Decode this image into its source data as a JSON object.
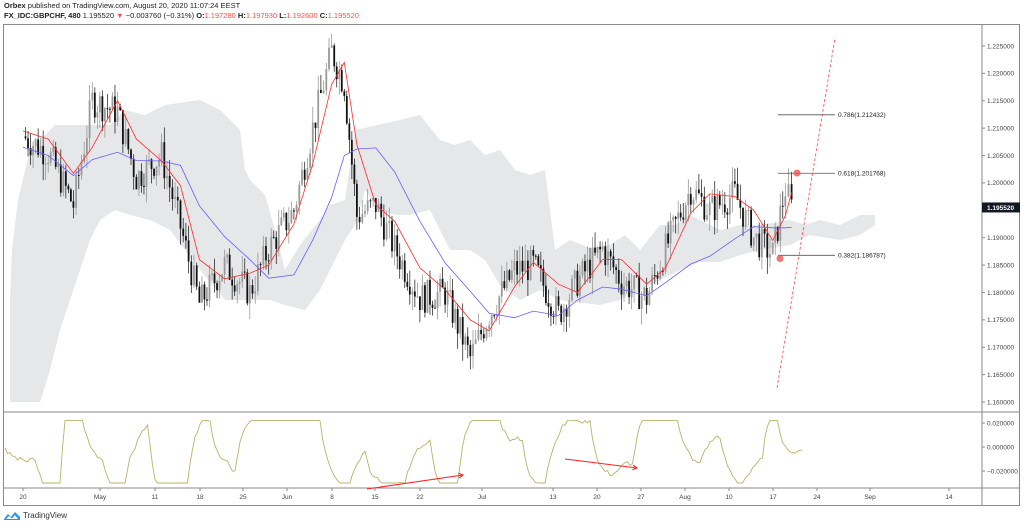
{
  "header": {
    "publisher": "Orbex",
    "published_text": "published on TradingView.com, August 20, 2020 11:07:24 EEST",
    "symbol": "FX_IDC:GBPCHF, 480",
    "last": "1.195520",
    "change_arrow": "▼",
    "change": "−0.003760 (−0.31%)",
    "o_label": "O:",
    "o": "1.197280",
    "h_label": "H:",
    "h": "1.197930",
    "l_label": "L:",
    "l": "1.192600",
    "c_label": "C:",
    "c": "1.195520"
  },
  "price_axis": {
    "ticks": [
      "1.225000",
      "1.220000",
      "1.215000",
      "1.210000",
      "1.205000",
      "1.200000",
      "1.190000",
      "1.185000",
      "1.180000",
      "1.175000",
      "1.170000",
      "1.165000",
      "1.160000"
    ],
    "current_label": "1.195520"
  },
  "osc_axis": {
    "ticks": [
      "0.020000",
      "0.000000",
      "−0.020000"
    ]
  },
  "time_axis": {
    "ticks": [
      "20",
      "May",
      "11",
      "18",
      "25",
      "Jun",
      "8",
      "15",
      "22",
      "Jul",
      "13",
      "20",
      "27",
      "Aug",
      "10",
      "17",
      "24",
      "Sep",
      "14"
    ]
  },
  "fib_levels": [
    {
      "label": "0.786(1.212432)"
    },
    {
      "label": "0.618(1.201768)"
    },
    {
      "label": "0.382(1.186787)"
    }
  ],
  "footer": {
    "brand": "TradingView"
  },
  "colors": {
    "tenkan": "#ff2b2b",
    "kijun": "#6b5cff",
    "cloud": "#e6e7e9",
    "oscillator": "#b8b36a",
    "arrow": "#ff2020",
    "candle": "#111111"
  },
  "chart_data": {
    "type": "candlestick",
    "title": "FX_IDC:GBPCHF, 480",
    "ylabel": "Price",
    "ylim": [
      1.1575,
      1.2285
    ],
    "x_ticks": [
      "20",
      "May",
      "11",
      "18",
      "25",
      "Jun",
      "8",
      "15",
      "22",
      "Jul",
      "13",
      "20",
      "27",
      "Aug",
      "10",
      "17",
      "24",
      "Sep",
      "14"
    ],
    "ohlc_last": {
      "open": 1.19728,
      "high": 1.19793,
      "low": 1.1926,
      "close": 1.19552
    },
    "approx_close_path": [
      {
        "x": "Apr 20",
        "y": 1.2085
      },
      {
        "x": "Apr 24",
        "y": 1.2055
      },
      {
        "x": "Apr 28",
        "y": 1.196
      },
      {
        "x": "May 1",
        "y": 1.215
      },
      {
        "x": "May 5",
        "y": 1.213
      },
      {
        "x": "May 8",
        "y": 1.201
      },
      {
        "x": "May 12",
        "y": 1.205
      },
      {
        "x": "May 15",
        "y": 1.192
      },
      {
        "x": "May 18",
        "y": 1.178
      },
      {
        "x": "May 22",
        "y": 1.185
      },
      {
        "x": "May 26",
        "y": 1.18
      },
      {
        "x": "May 29",
        "y": 1.188
      },
      {
        "x": "Jun 2",
        "y": 1.195
      },
      {
        "x": "Jun 5",
        "y": 1.21
      },
      {
        "x": "Jun 8",
        "y": 1.224
      },
      {
        "x": "Jun 10",
        "y": 1.218
      },
      {
        "x": "Jun 12",
        "y": 1.194
      },
      {
        "x": "Jun 15",
        "y": 1.196
      },
      {
        "x": "Jun 18",
        "y": 1.188
      },
      {
        "x": "Jun 22",
        "y": 1.179
      },
      {
        "x": "Jun 26",
        "y": 1.18
      },
      {
        "x": "Jun 30",
        "y": 1.168
      },
      {
        "x": "Jul 3",
        "y": 1.176
      },
      {
        "x": "Jul 7",
        "y": 1.184
      },
      {
        "x": "Jul 10",
        "y": 1.185
      },
      {
        "x": "Jul 14",
        "y": 1.176
      },
      {
        "x": "Jul 17",
        "y": 1.182
      },
      {
        "x": "Jul 21",
        "y": 1.188
      },
      {
        "x": "Jul 24",
        "y": 1.182
      },
      {
        "x": "Jul 28",
        "y": 1.179
      },
      {
        "x": "Jul 31",
        "y": 1.188
      },
      {
        "x": "Aug 4",
        "y": 1.199
      },
      {
        "x": "Aug 7",
        "y": 1.195
      },
      {
        "x": "Aug 11",
        "y": 1.198
      },
      {
        "x": "Aug 14",
        "y": 1.19
      },
      {
        "x": "Aug 17",
        "y": 1.187
      },
      {
        "x": "Aug 19",
        "y": 1.199
      },
      {
        "x": "Aug 20",
        "y": 1.19552
      }
    ],
    "indicators": {
      "ichimoku": {
        "tenkan_color": "#ff2b2b",
        "kijun_color": "#6b5cff",
        "cloud_color": "#e6e7e9"
      },
      "oscillator": {
        "ylim": [
          -0.03,
          0.03
        ],
        "ticks": [
          0.02,
          0.0,
          -0.02
        ],
        "color": "#b8b36a"
      }
    },
    "annotations": [
      {
        "type": "fib_extension",
        "levels": [
          {
            "ratio": 0.786,
            "price": 1.212432
          },
          {
            "ratio": 0.618,
            "price": 1.201768
          },
          {
            "ratio": 0.382,
            "price": 1.186787
          }
        ]
      },
      {
        "type": "trendline_dashed",
        "color": "#ff4040",
        "from": {
          "x": "Aug 17",
          "y": 1.162
        },
        "to": {
          "x": "Aug 24",
          "y": 1.227
        }
      },
      {
        "type": "arrow",
        "pane": "oscillator",
        "from": "Jun 15",
        "to": "Jun 29",
        "direction": "up"
      },
      {
        "type": "arrow",
        "pane": "oscillator",
        "from": "Jul 14",
        "to": "Jul 27",
        "direction": "down"
      },
      {
        "type": "marker",
        "x": "Aug 19",
        "y": 1.2018
      },
      {
        "type": "marker",
        "x": "Aug 17",
        "y": 1.1862
      }
    ]
  }
}
